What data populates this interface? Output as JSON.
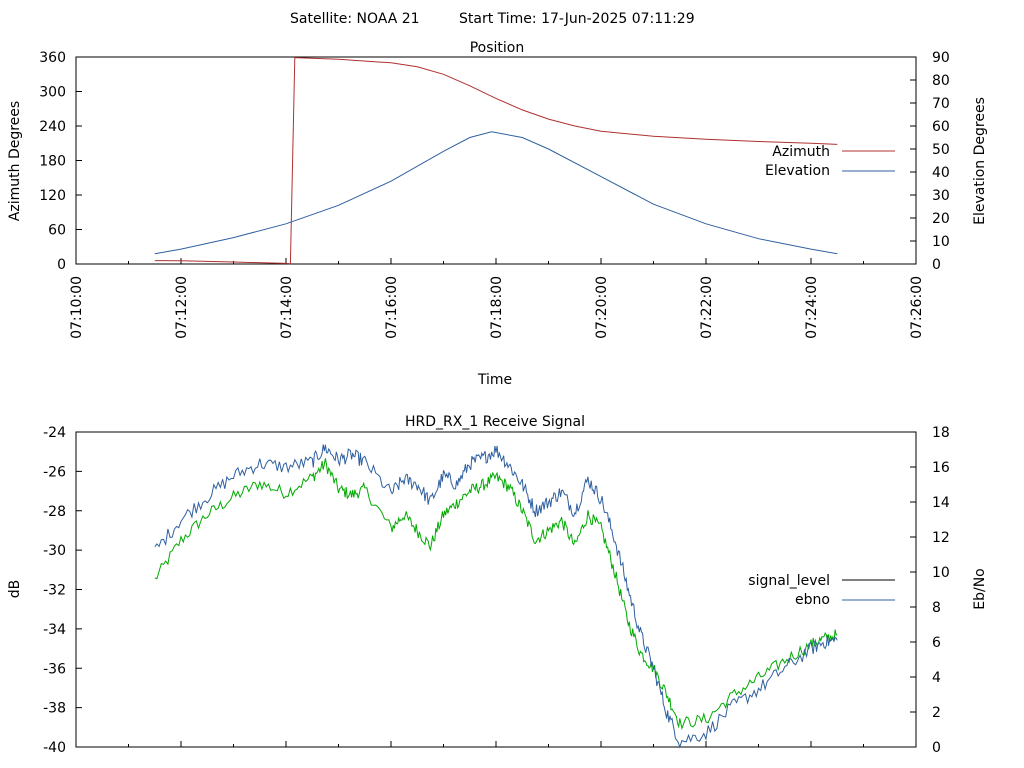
{
  "header": {
    "satellite_text": "Satellite: NOAA 21",
    "start_time_text": "Start Time: 17-Jun-2025 07:11:29"
  },
  "colors": {
    "azimuth": "#b03030",
    "elevation": "#3060a0",
    "signal_level": "#00aa00",
    "ebno": "#3060a0",
    "axes": "#000000"
  },
  "chart_data": [
    {
      "type": "line",
      "title": "Position",
      "xlabel": "Time",
      "ylabel": "Azimuth Degrees",
      "y2label": "Elevation Degrees",
      "xlim_minutes": [
        0,
        16
      ],
      "x_tick_labels": [
        "07:10:00",
        "07:12:00",
        "07:14:00",
        "07:16:00",
        "07:18:00",
        "07:20:00",
        "07:22:00",
        "07:24:00",
        "07:26:00"
      ],
      "ylim": [
        0,
        360
      ],
      "y_ticks": [
        0,
        60,
        120,
        180,
        240,
        300,
        360
      ],
      "y2lim": [
        0,
        90
      ],
      "y2_ticks": [
        0,
        10,
        20,
        30,
        40,
        50,
        60,
        70,
        80,
        90
      ],
      "legend_position": "right",
      "series": [
        {
          "name": "Azimuth",
          "axis": "y",
          "x": [
            "07:11:30",
            "07:12:00",
            "07:13:00",
            "07:14:00",
            "07:14:05",
            "07:14:10",
            "07:15:00",
            "07:16:00",
            "07:16:30",
            "07:17:00",
            "07:17:30",
            "07:18:00",
            "07:18:30",
            "07:19:00",
            "07:19:30",
            "07:20:00",
            "07:21:00",
            "07:22:00",
            "07:23:00",
            "07:24:00",
            "07:24:30"
          ],
          "y": [
            6,
            5.5,
            3.5,
            1,
            0.5,
            359,
            356,
            350,
            343,
            330,
            310,
            288,
            268,
            252,
            240,
            231,
            222,
            217,
            213,
            210,
            208
          ]
        },
        {
          "name": "Elevation",
          "axis": "y2",
          "x": [
            "07:11:30",
            "07:12:00",
            "07:13:00",
            "07:14:00",
            "07:15:00",
            "07:16:00",
            "07:17:00",
            "07:17:30",
            "07:17:55",
            "07:18:30",
            "07:19:00",
            "07:20:00",
            "07:21:00",
            "07:22:00",
            "07:23:00",
            "07:24:00",
            "07:24:30"
          ],
          "y": [
            4.5,
            6.5,
            11.5,
            17.5,
            25.5,
            36,
            49,
            55,
            57.5,
            55,
            50,
            38,
            26,
            17.5,
            11,
            6.5,
            4.5
          ]
        }
      ]
    },
    {
      "type": "line",
      "title": "HRD_RX_1 Receive Signal",
      "xlabel": "",
      "ylabel": "dB",
      "y2label": "Eb/No",
      "xlim_minutes": [
        0,
        16
      ],
      "ylim": [
        -40,
        -24
      ],
      "y_ticks": [
        -24,
        -26,
        -28,
        -30,
        -32,
        -34,
        -36,
        -38,
        -40
      ],
      "y2lim": [
        0,
        18
      ],
      "y2_ticks": [
        0,
        2,
        4,
        6,
        8,
        10,
        12,
        14,
        16,
        18
      ],
      "legend_position": "right",
      "series": [
        {
          "name": "signal_level",
          "axis": "y",
          "x": [
            "07:11:30",
            "07:12:00",
            "07:12:30",
            "07:13:00",
            "07:13:30",
            "07:14:00",
            "07:14:30",
            "07:14:45",
            "07:15:00",
            "07:15:15",
            "07:15:30",
            "07:16:00",
            "07:16:15",
            "07:16:30",
            "07:16:45",
            "07:17:00",
            "07:17:15",
            "07:17:30",
            "07:17:45",
            "07:18:00",
            "07:18:15",
            "07:18:30",
            "07:18:45",
            "07:19:00",
            "07:19:15",
            "07:19:30",
            "07:19:45",
            "07:20:00",
            "07:20:15",
            "07:20:30",
            "07:20:45",
            "07:21:00",
            "07:21:15",
            "07:21:30",
            "07:22:00",
            "07:22:30",
            "07:23:00",
            "07:23:30",
            "07:24:00",
            "07:24:15",
            "07:24:30"
          ],
          "y": [
            -31.5,
            -29.5,
            -28.2,
            -27.3,
            -26.6,
            -27.1,
            -26.3,
            -25.6,
            -26.9,
            -27.2,
            -26.9,
            -28.9,
            -28.2,
            -29.0,
            -29.8,
            -28.2,
            -27.6,
            -27.0,
            -26.7,
            -26.3,
            -26.8,
            -28.0,
            -29.5,
            -29.0,
            -28.5,
            -29.8,
            -28.2,
            -28.9,
            -31.0,
            -33.5,
            -35.2,
            -36.0,
            -37.3,
            -38.8,
            -38.6,
            -37.4,
            -36.5,
            -35.6,
            -34.8,
            -34.5,
            -34.3
          ]
        },
        {
          "name": "ebno",
          "axis": "y2",
          "x": [
            "07:11:30",
            "07:12:00",
            "07:12:30",
            "07:13:00",
            "07:13:30",
            "07:14:00",
            "07:14:30",
            "07:14:45",
            "07:15:00",
            "07:15:15",
            "07:15:30",
            "07:16:00",
            "07:16:15",
            "07:16:30",
            "07:16:45",
            "07:17:00",
            "07:17:15",
            "07:17:30",
            "07:17:45",
            "07:18:00",
            "07:18:15",
            "07:18:30",
            "07:18:45",
            "07:19:00",
            "07:19:15",
            "07:19:30",
            "07:19:45",
            "07:20:00",
            "07:20:15",
            "07:20:30",
            "07:20:45",
            "07:21:00",
            "07:21:15",
            "07:21:30",
            "07:22:00",
            "07:22:30",
            "07:23:00",
            "07:23:30",
            "07:24:00",
            "07:24:15",
            "07:24:30"
          ],
          "y": [
            11.2,
            13.0,
            14.3,
            15.5,
            16.2,
            16.0,
            16.3,
            17.1,
            16.4,
            16.7,
            16.3,
            14.5,
            15.3,
            15.0,
            14.0,
            15.5,
            15.0,
            16.2,
            16.5,
            17.0,
            16.1,
            15.0,
            13.5,
            14.0,
            14.6,
            13.4,
            15.3,
            14.2,
            12.0,
            9.2,
            6.5,
            4.5,
            2.0,
            0.3,
            0.8,
            2.3,
            3.3,
            4.5,
            5.6,
            6.0,
            6.1
          ]
        }
      ]
    }
  ]
}
